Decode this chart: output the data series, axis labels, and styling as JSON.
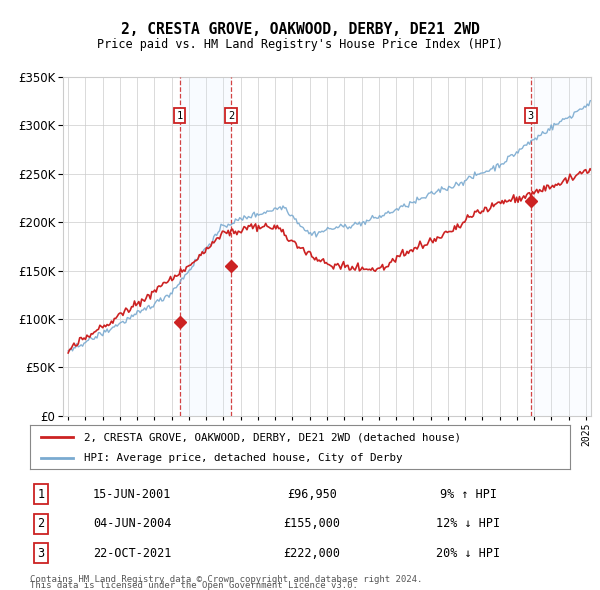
{
  "title": "2, CRESTA GROVE, OAKWOOD, DERBY, DE21 2WD",
  "subtitle": "Price paid vs. HM Land Registry's House Price Index (HPI)",
  "ylim": [
    0,
    350000
  ],
  "yticks": [
    0,
    50000,
    100000,
    150000,
    200000,
    250000,
    300000,
    350000
  ],
  "hpi_color": "#7aaad0",
  "property_color": "#cc2222",
  "sale1_date": 2001.46,
  "sale1_price": 96950,
  "sale2_date": 2004.43,
  "sale2_price": 155000,
  "sale3_date": 2021.81,
  "sale3_price": 222000,
  "legend1": "2, CRESTA GROVE, OAKWOOD, DERBY, DE21 2WD (detached house)",
  "legend2": "HPI: Average price, detached house, City of Derby",
  "table": [
    {
      "num": "1",
      "date": "15-JUN-2001",
      "price": "£96,950",
      "hpi": "9% ↑ HPI"
    },
    {
      "num": "2",
      "date": "04-JUN-2004",
      "price": "£155,000",
      "hpi": "12% ↓ HPI"
    },
    {
      "num": "3",
      "date": "22-OCT-2021",
      "price": "£222,000",
      "hpi": "20% ↓ HPI"
    }
  ],
  "footnote1": "Contains HM Land Registry data © Crown copyright and database right 2024.",
  "footnote2": "This data is licensed under the Open Government Licence v3.0.",
  "background_color": "#ffffff",
  "grid_color": "#cccccc",
  "shade_color": "#ddeeff",
  "xmin": 1994.7,
  "xmax": 2025.3
}
